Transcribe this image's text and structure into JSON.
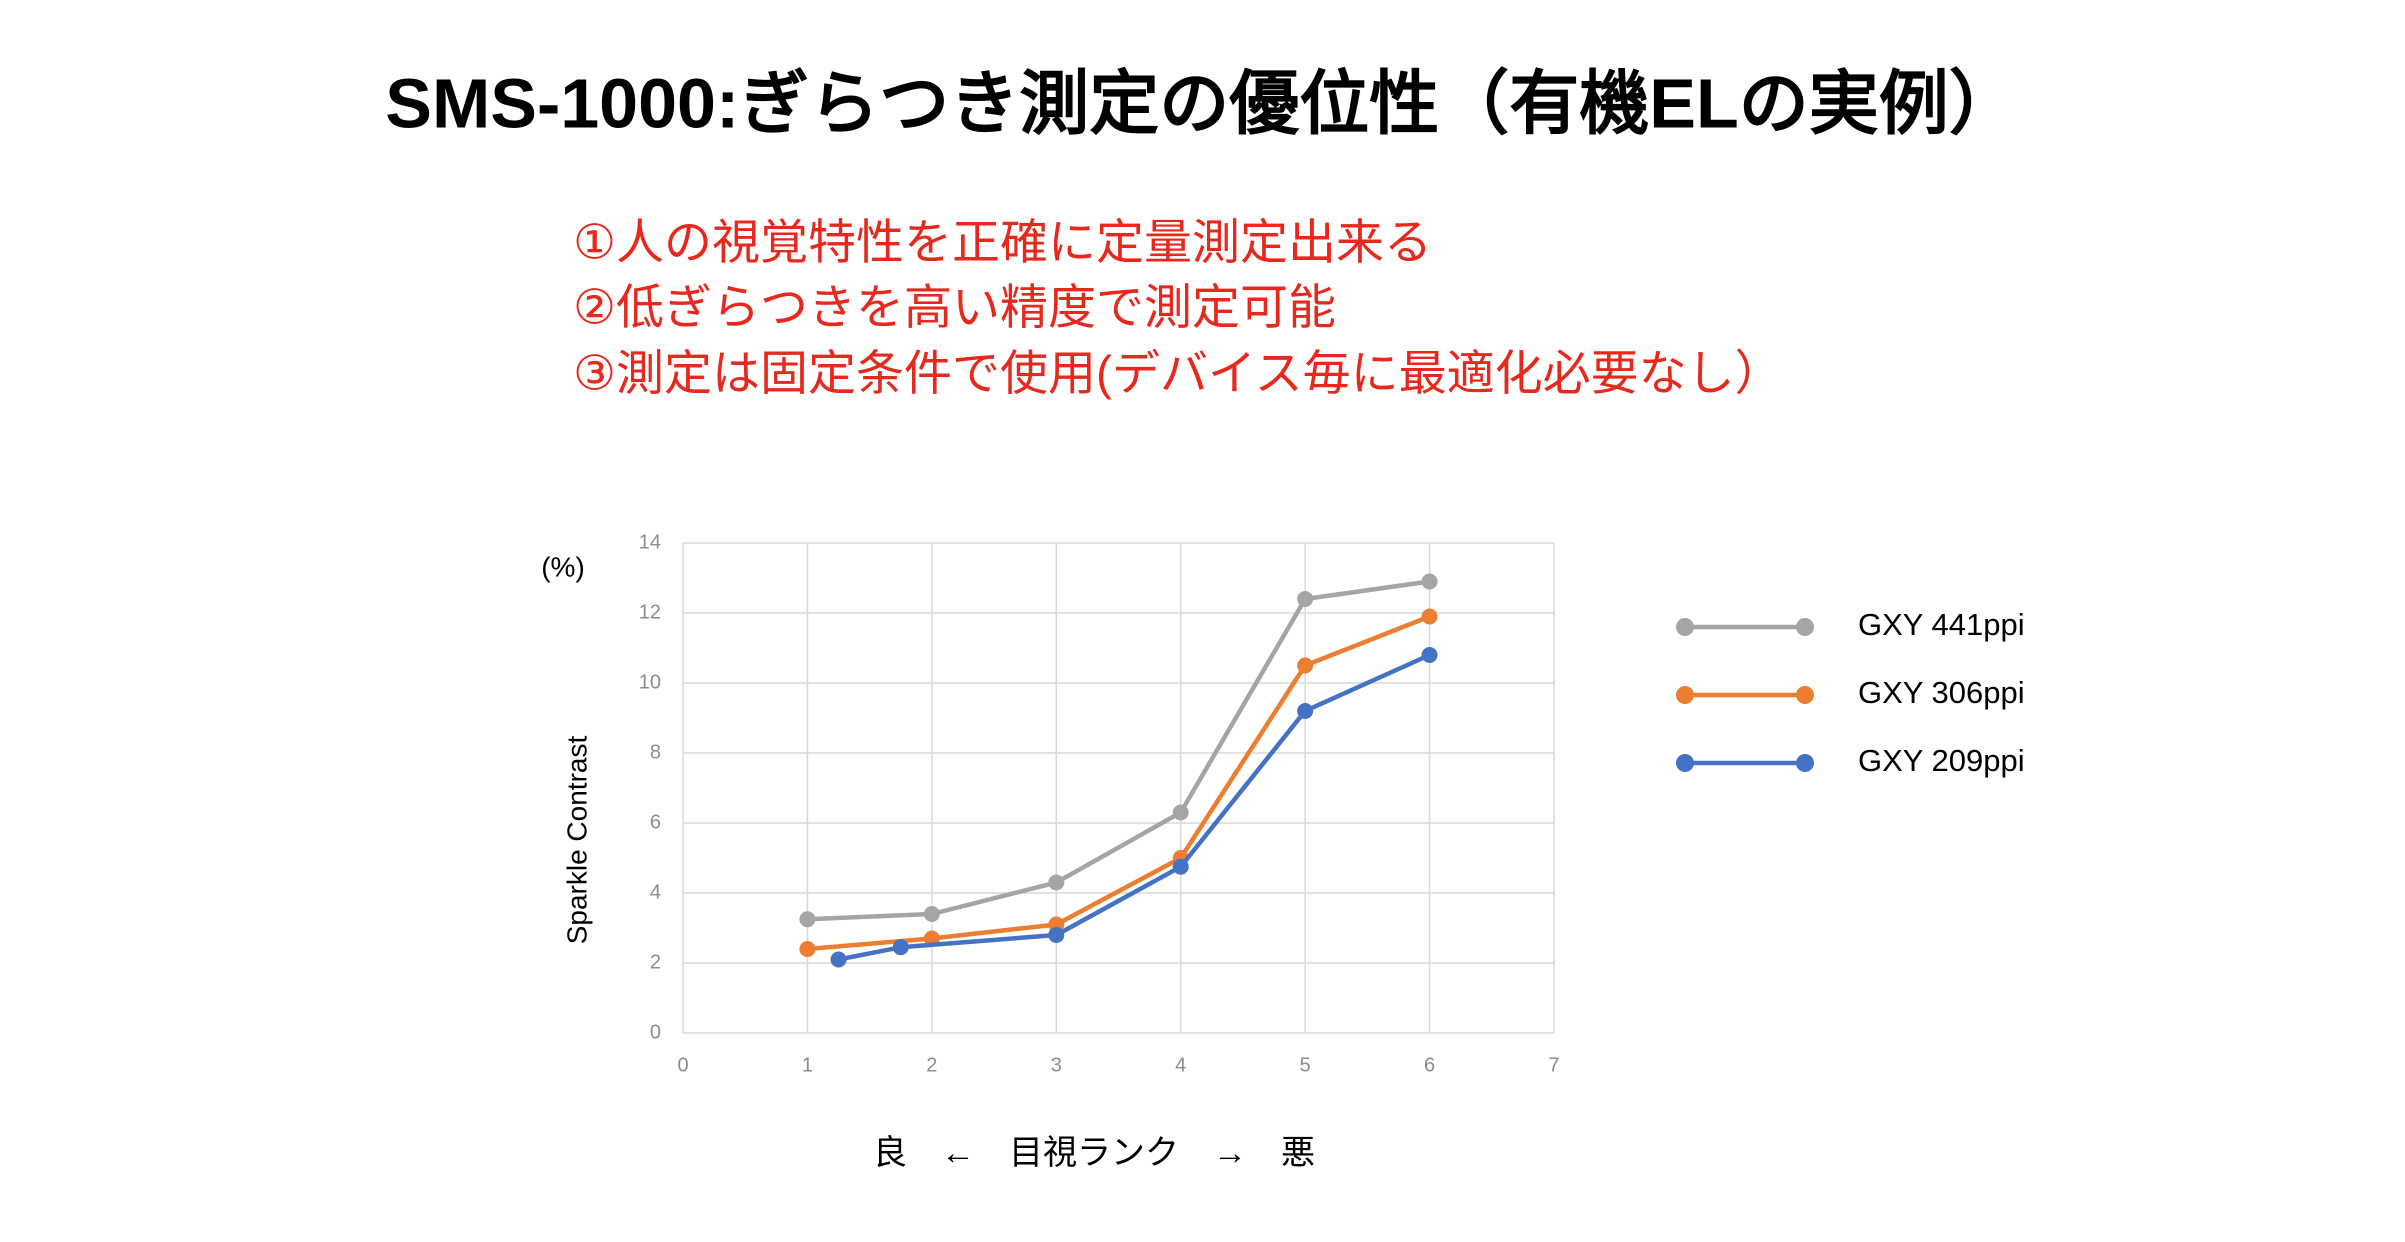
{
  "title": "SMS-1000:ぎらつき測定の優位性（有機ELの実例）",
  "points": [
    "①人の視覚特性を正確に定量測定出来る",
    "②低ぎらつきを高い精度で測定可能",
    "③測定は固定条件で使用(デバイス毎に最適化必要なし）"
  ],
  "chart_data": {
    "type": "line",
    "y_unit": "(%)",
    "y_label": "Sparkle Contrast",
    "x_label": "良　←　目視ランク　→　悪",
    "xlim": [
      0,
      7
    ],
    "xticks": [
      0,
      1,
      2,
      3,
      4,
      5,
      6,
      7
    ],
    "ylim": [
      0,
      14
    ],
    "yticks": [
      0,
      2,
      4,
      6,
      8,
      10,
      12,
      14
    ],
    "grid": true,
    "series": [
      {
        "name": "GXY 441ppi",
        "color": "#a5a5a5",
        "x": [
          1,
          2,
          3,
          4,
          5,
          6
        ],
        "values": [
          3.25,
          3.4,
          4.3,
          6.3,
          12.4,
          12.9
        ]
      },
      {
        "name": "GXY 306ppi",
        "color": "#ed7d31",
        "x": [
          1,
          2,
          3,
          4,
          5,
          6
        ],
        "values": [
          2.4,
          2.7,
          3.1,
          5.0,
          10.5,
          11.9
        ]
      },
      {
        "name": "GXY 209ppi",
        "color": "#4472c4",
        "x": [
          1.25,
          1.75,
          3,
          4,
          5,
          6
        ],
        "values": [
          2.1,
          2.45,
          2.8,
          4.75,
          9.2,
          10.8
        ]
      }
    ]
  }
}
